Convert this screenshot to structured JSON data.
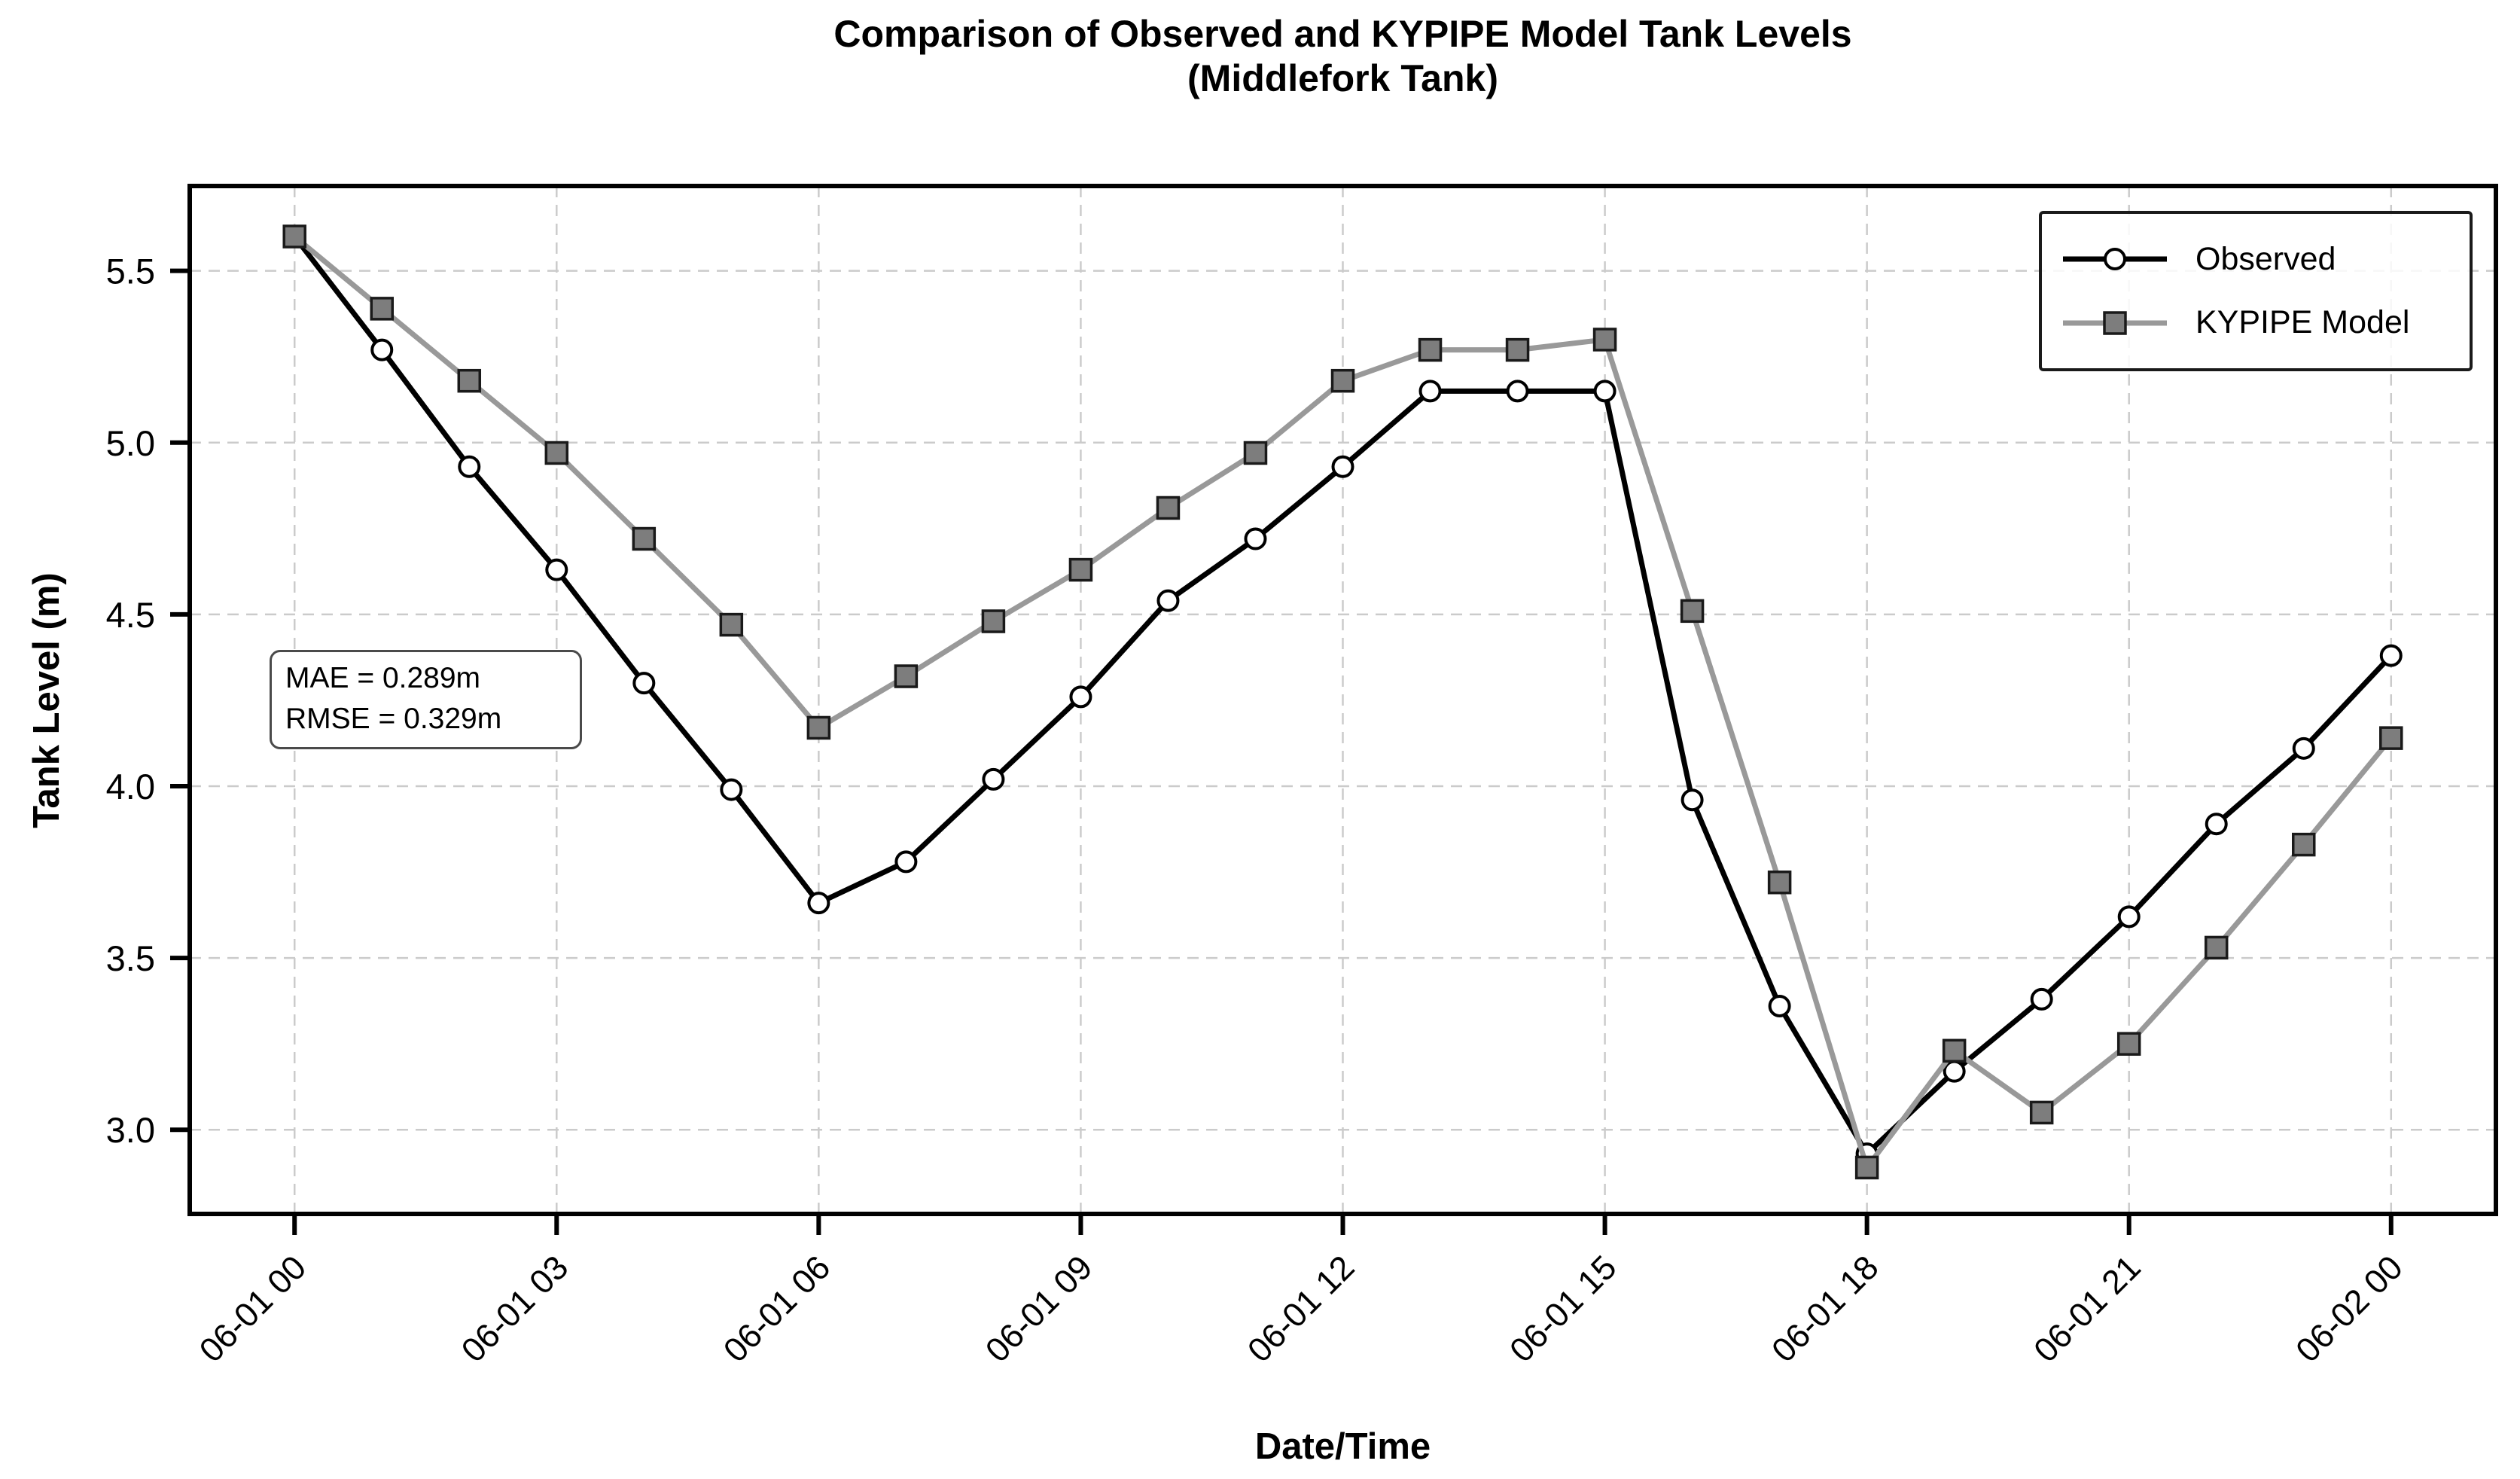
{
  "title": {
    "line1": "Comparison of Observed and KYPIPE Model Tank Levels",
    "line2": "(Middlefork Tank)"
  },
  "axes": {
    "x_label": "Date/Time",
    "y_label": "Tank Level (m)"
  },
  "annotation": {
    "line1": "MAE = 0.289m",
    "line2": "RMSE = 0.329m"
  },
  "chart_data": {
    "type": "line",
    "title": "Comparison of Observed and KYPIPE Model Tank Levels (Middlefork Tank)",
    "xlabel": "Date/Time",
    "ylabel": "Tank Level (m)",
    "x_unit": "hours since 06-01 00:00",
    "x": [
      0,
      1,
      2,
      3,
      4,
      5,
      6,
      7,
      8,
      9,
      10,
      11,
      12,
      13,
      14,
      15,
      16,
      17,
      18,
      19,
      20,
      21,
      22,
      23,
      24
    ],
    "series": [
      {
        "name": "Observed",
        "color": "#000000",
        "marker": "circle",
        "marker_fill": "#ffffff",
        "marker_edge": "#000000",
        "values": [
          5.6,
          5.27,
          4.93,
          4.63,
          4.3,
          3.99,
          3.66,
          3.78,
          4.02,
          4.26,
          4.54,
          4.72,
          4.93,
          5.15,
          5.15,
          5.15,
          3.96,
          3.36,
          2.93,
          3.17,
          3.38,
          3.62,
          3.89,
          4.11,
          4.38
        ]
      },
      {
        "name": "KYPIPE Model",
        "color": "#999999",
        "marker": "square",
        "marker_fill": "#7d7d7d",
        "marker_edge": "#1a1a1a",
        "values": [
          5.6,
          5.39,
          5.18,
          4.97,
          4.72,
          4.47,
          4.17,
          4.32,
          4.48,
          4.63,
          4.81,
          4.97,
          5.18,
          5.27,
          5.27,
          5.3,
          4.51,
          3.72,
          2.89,
          3.23,
          3.05,
          3.25,
          3.53,
          3.83,
          4.14
        ]
      }
    ],
    "x_ticks": {
      "positions": [
        0,
        3,
        6,
        9,
        12,
        15,
        18,
        21,
        24
      ],
      "labels": [
        "06-01 00",
        "06-01 03",
        "06-01 06",
        "06-01 09",
        "06-01 12",
        "06-01 15",
        "06-01 18",
        "06-01 21",
        "06-02 00"
      ]
    },
    "y_ticks": {
      "positions": [
        3.0,
        3.5,
        4.0,
        4.5,
        5.0,
        5.5
      ],
      "labels": [
        "3.0",
        "3.5",
        "4.0",
        "4.5",
        "5.0",
        "5.5"
      ]
    },
    "xlim": [
      -1.2,
      25.2
    ],
    "ylim": [
      2.755,
      5.747
    ],
    "grid": true,
    "grid_style": "dashed",
    "legend_position": "upper right",
    "colors": {
      "grid": "#cbcbcb",
      "axis": "#000000",
      "background": "#ffffff"
    }
  }
}
